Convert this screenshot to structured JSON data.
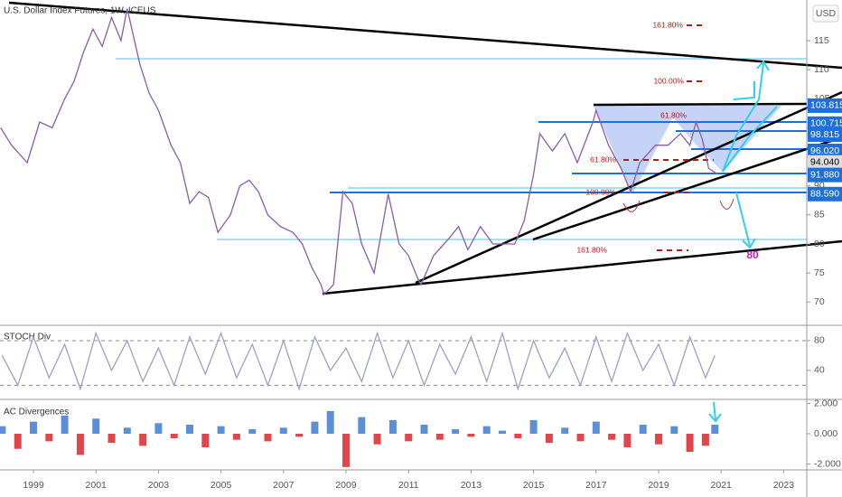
{
  "chart_data": [
    {
      "type": "line",
      "title": "U.S. Dollar Index Futures, 1W, ICEUS",
      "currency_label": "USD",
      "color": "#8a5ca8",
      "x": [
        1997.95,
        1998.3,
        1998.8,
        1999.2,
        1999.6,
        2000.0,
        2000.3,
        2000.6,
        2000.9,
        2001.2,
        2001.5,
        2001.8,
        2002.0,
        2002.4,
        2002.7,
        2003.0,
        2003.4,
        2003.7,
        2004.0,
        2004.3,
        2004.6,
        2004.9,
        2005.3,
        2005.6,
        2005.9,
        2006.2,
        2006.5,
        2006.9,
        2007.3,
        2007.6,
        2007.9,
        2008.2,
        2008.3,
        2008.6,
        2008.9,
        2009.2,
        2009.5,
        2009.9,
        2010.35,
        2010.7,
        2011.0,
        2011.3,
        2011.4,
        2011.8,
        2012.3,
        2012.6,
        2012.9,
        2013.3,
        2013.7,
        2014.0,
        2014.4,
        2014.7,
        2015.0,
        2015.2,
        2015.6,
        2016.0,
        2016.4,
        2016.9,
        2017.0,
        2017.4,
        2017.8,
        2018.1,
        2018.4,
        2018.9,
        2019.3,
        2019.7,
        2020.0,
        2020.2,
        2020.4,
        2020.6,
        2020.9
      ],
      "values": [
        100,
        97,
        94,
        101,
        100,
        105,
        108,
        113,
        117,
        114,
        119,
        115,
        120.5,
        111,
        106,
        103,
        97,
        94,
        87,
        89,
        88,
        82,
        85,
        90,
        91,
        89,
        85,
        83,
        82,
        80,
        76,
        73,
        71.3,
        73,
        89,
        87,
        80,
        75,
        88.6,
        80,
        78,
        74,
        73,
        78,
        81,
        83,
        79,
        83,
        80,
        80,
        80,
        84,
        92,
        99,
        96,
        99,
        94,
        101,
        103,
        97,
        93,
        89,
        94,
        97,
        97,
        99,
        97,
        101,
        98,
        93,
        92
      ],
      "xlim": [
        1997.93,
        2023.74
      ],
      "xticks": [
        1999,
        2001,
        2003,
        2005,
        2007,
        2009,
        2011,
        2013,
        2015,
        2017,
        2019,
        2021,
        2023
      ],
      "ylim": [
        66,
        122
      ],
      "yticks": [
        70,
        75,
        80,
        85,
        90,
        95,
        100,
        105,
        110,
        115
      ],
      "price_labels": [
        {
          "value": 103.815,
          "label": "103.815"
        },
        {
          "value": 100.715,
          "label": "100.715"
        },
        {
          "value": 98.815,
          "label": "98.815"
        },
        {
          "value": 96.02,
          "label": "96.020"
        },
        {
          "value": 94.04,
          "label": "94.040"
        },
        {
          "value": 91.88,
          "label": "91.880"
        },
        {
          "value": 88.59,
          "label": "88.590"
        }
      ],
      "fib_labels": [
        "161.80%",
        "100.00%",
        "61.80%",
        "61.80%",
        "100.00%",
        "161.80%"
      ],
      "annotation": "80"
    },
    {
      "type": "line",
      "title": "STOCH Div",
      "color": "#9aa0c8",
      "x": [
        1998.0,
        1998.5,
        1999.0,
        1999.5,
        2000.0,
        2000.5,
        2001.0,
        2001.5,
        2002.0,
        2002.5,
        2003.0,
        2003.5,
        2004.0,
        2004.5,
        2005.0,
        2005.5,
        2006.0,
        2006.5,
        2007.0,
        2007.5,
        2008.0,
        2008.5,
        2009.0,
        2009.5,
        2010.0,
        2010.5,
        2011.0,
        2011.5,
        2012.0,
        2012.5,
        2013.0,
        2013.5,
        2014.0,
        2014.5,
        2015.0,
        2015.5,
        2016.0,
        2016.5,
        2017.0,
        2017.5,
        2018.0,
        2018.5,
        2019.0,
        2019.5,
        2020.0,
        2020.5,
        2020.8
      ],
      "values": [
        60,
        20,
        85,
        30,
        75,
        15,
        90,
        40,
        80,
        25,
        70,
        20,
        85,
        35,
        90,
        30,
        75,
        20,
        80,
        15,
        85,
        40,
        70,
        25,
        90,
        30,
        80,
        20,
        75,
        35,
        85,
        25,
        90,
        15,
        80,
        30,
        70,
        20,
        85,
        25,
        90,
        40,
        75,
        20,
        85,
        30,
        60
      ],
      "ylim": [
        1,
        100.6
      ],
      "yticks": [
        80,
        40
      ],
      "levels": [
        80,
        20
      ]
    },
    {
      "type": "bar",
      "title": "AC Divergences",
      "color_positive": "#5b8fd6",
      "color_negative": "#e0474c",
      "x": [
        1998.0,
        1998.5,
        1999.0,
        1999.5,
        2000.0,
        2000.5,
        2001.0,
        2001.5,
        2002.0,
        2002.5,
        2003.0,
        2003.5,
        2004.0,
        2004.5,
        2005.0,
        2005.5,
        2006.0,
        2006.5,
        2007.0,
        2007.5,
        2008.0,
        2008.5,
        2009.0,
        2009.5,
        2010.0,
        2010.5,
        2011.0,
        2011.5,
        2012.0,
        2012.5,
        2013.0,
        2013.5,
        2014.0,
        2014.5,
        2015.0,
        2015.5,
        2016.0,
        2016.5,
        2017.0,
        2017.5,
        2018.0,
        2018.5,
        2019.0,
        2019.5,
        2020.0,
        2020.5,
        2020.8
      ],
      "values": [
        0.5,
        -1.0,
        0.8,
        -0.5,
        1.2,
        -1.4,
        1.0,
        -0.6,
        0.4,
        -0.8,
        0.7,
        -0.3,
        0.6,
        -0.9,
        0.5,
        -0.4,
        0.3,
        -0.5,
        0.4,
        -0.2,
        0.8,
        1.5,
        -2.2,
        1.1,
        -0.7,
        0.9,
        -0.5,
        0.6,
        -0.4,
        0.3,
        -0.2,
        0.5,
        0.2,
        -0.3,
        0.9,
        -0.6,
        0.4,
        -0.5,
        0.8,
        -0.4,
        -0.9,
        0.6,
        -0.7,
        0.5,
        -1.2,
        -0.8,
        0.6
      ],
      "ylim": [
        -2.39,
        2.27
      ],
      "yticks": [
        {
          "value": 2,
          "label": "2.000"
        },
        {
          "value": 0,
          "label": "0.000"
        },
        {
          "value": -2,
          "label": "-2.000"
        }
      ]
    }
  ]
}
